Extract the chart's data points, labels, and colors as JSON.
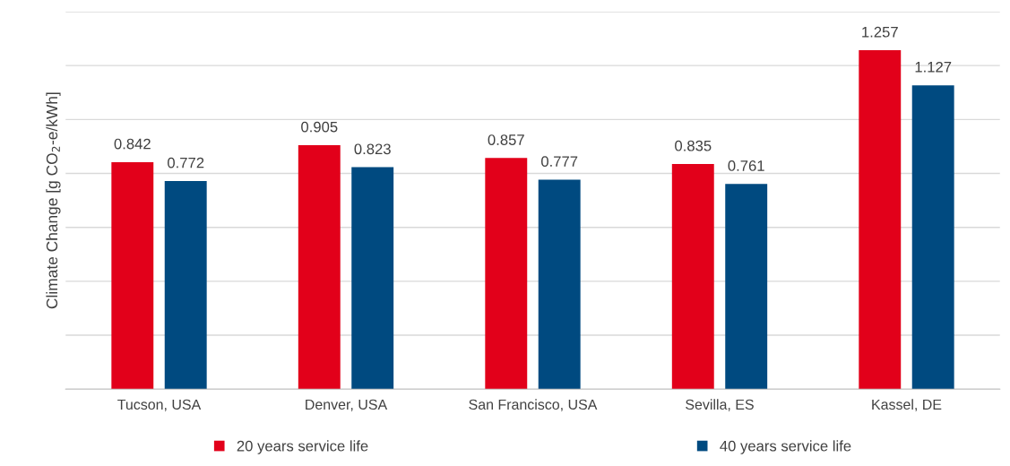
{
  "chart_data": {
    "type": "bar",
    "ylabel": "Climate Change [g CO$_{2}$-e/kWh]",
    "categories": [
      "Tucson, USA",
      "Denver, USA",
      "San Francisco, USA",
      "Sevilla, ES",
      "Kassel, DE"
    ],
    "series": [
      {
        "name": "20 years service life",
        "color": "#e2001a",
        "values": [
          0.842,
          0.905,
          0.857,
          0.835,
          1.257
        ]
      },
      {
        "name": "40 years service life",
        "color": "#004a80",
        "values": [
          0.772,
          0.823,
          0.777,
          0.761,
          1.127
        ]
      }
    ],
    "ylim": [
      0,
      1.4
    ],
    "yticks": [
      {
        "value": 0,
        "label": null
      },
      {
        "value": 0.2,
        "label": null
      },
      {
        "value": 0.4,
        "label": null
      },
      {
        "value": 0.6,
        "label": null
      },
      {
        "value": 0.8,
        "label": null
      },
      {
        "value": 1.0,
        "label": null
      },
      {
        "value": 1.2,
        "label": null
      },
      {
        "value": 1.4,
        "label": null
      }
    ],
    "tick_labels": "x",
    "grid": "y",
    "legend": "bottom",
    "data_labels": true
  }
}
